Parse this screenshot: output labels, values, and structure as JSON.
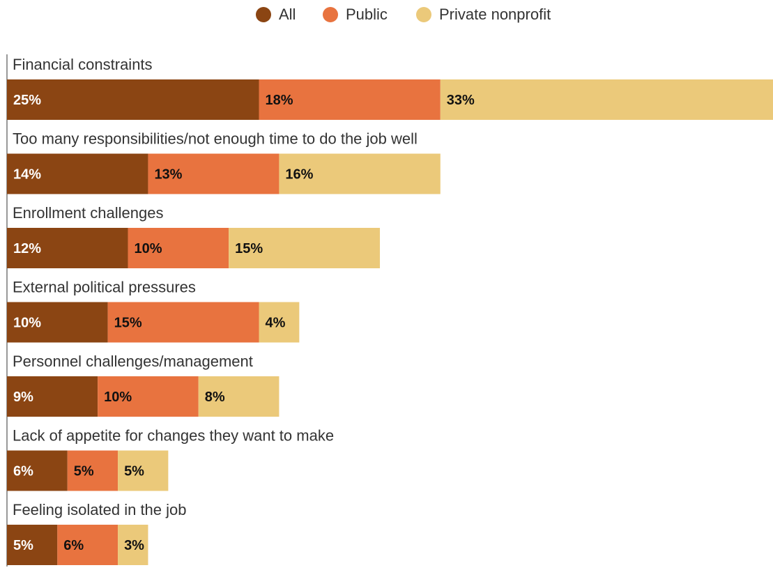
{
  "colors": {
    "All": "#8B4513",
    "Public": "#E8733F",
    "Private nonprofit": "#EBC97A",
    "axis": "#555555",
    "label_text": "#333333",
    "value_text_dark": "#111111",
    "value_text_light": "#ffffff"
  },
  "chart_data": {
    "type": "bar",
    "orientation": "horizontal",
    "stacked": true,
    "legend_position": "top-center",
    "grid": false,
    "categories": [
      "Financial constraints",
      "Too many responsibilities/not enough time to do the job well",
      "Enrollment challenges",
      "External political pressures",
      "Personnel challenges/management",
      "Lack of appetite for changes they want to make",
      "Feeling isolated in the job"
    ],
    "series": [
      {
        "name": "All",
        "values": [
          25,
          14,
          12,
          10,
          9,
          6,
          5
        ]
      },
      {
        "name": "Public",
        "values": [
          18,
          13,
          10,
          15,
          10,
          5,
          6
        ]
      },
      {
        "name": "Private nonprofit",
        "values": [
          33,
          16,
          15,
          4,
          8,
          5,
          3
        ]
      }
    ],
    "value_suffix": "%",
    "xlim": [
      0,
      76
    ]
  }
}
